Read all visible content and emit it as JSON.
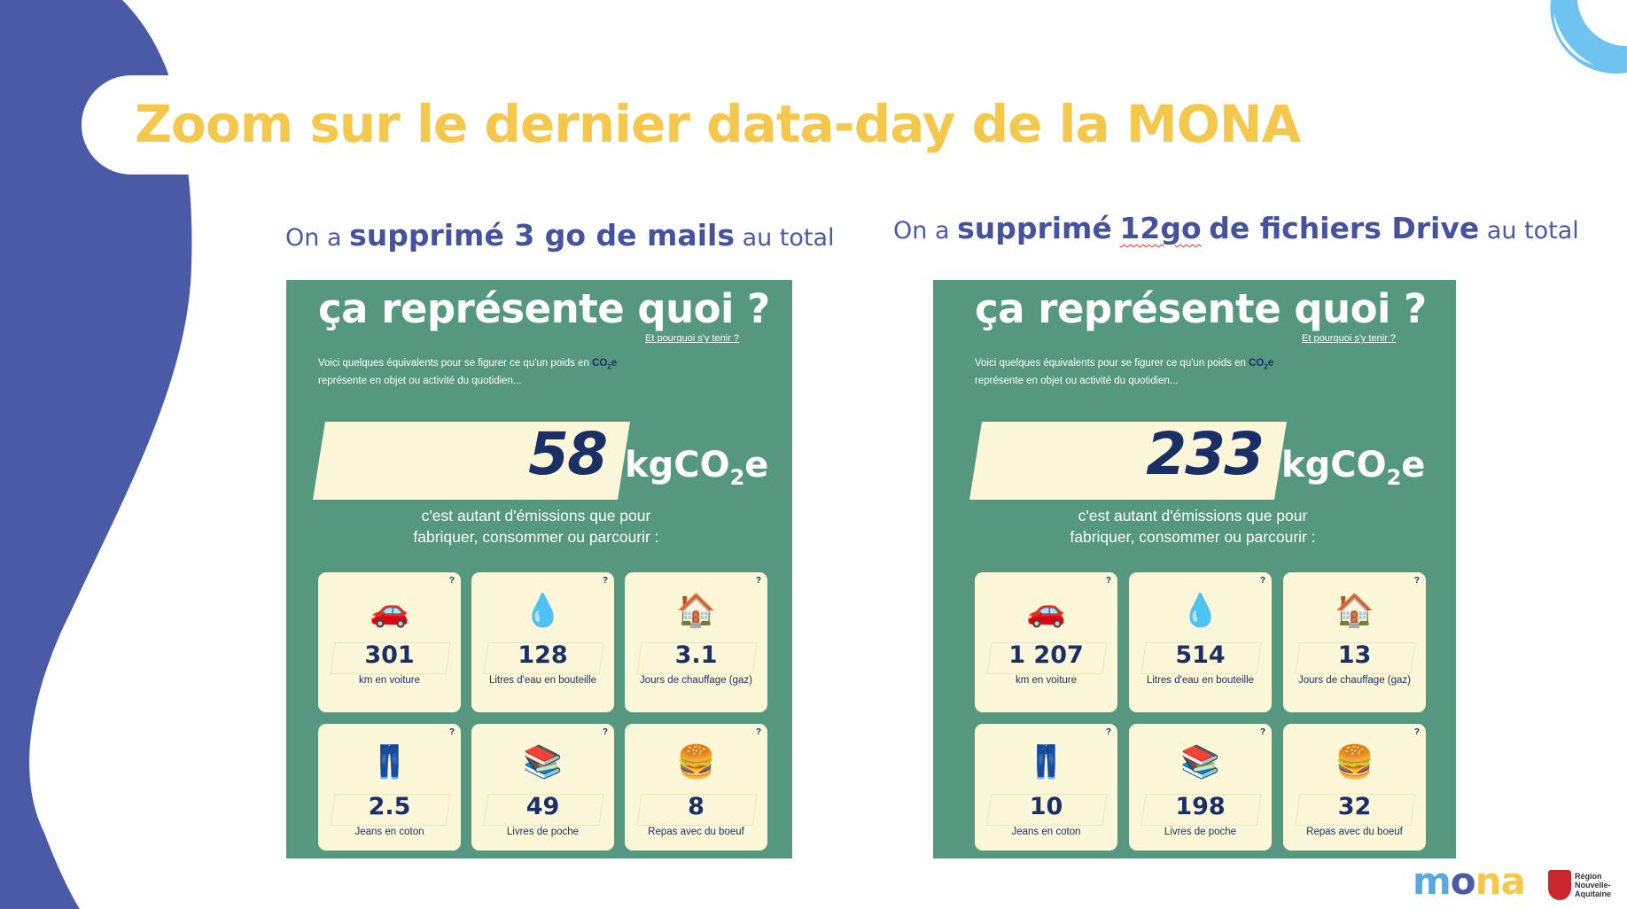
{
  "title": "Zoom sur le dernier data-day de la MONA",
  "colors": {
    "blue_shape": "#4b5aa6",
    "title_yellow": "#f4c84c",
    "card_green": "#56977f",
    "tile_cream": "#fbf7d8",
    "navy": "#1a2f66",
    "light_blue": "#6fc3f0"
  },
  "subtitles": [
    {
      "pre": "On a",
      "bold": "supprimé 3 go de mails",
      "post": "au total"
    },
    {
      "pre": "On a",
      "bold_1": "supprimé",
      "bold_underlined": "12go",
      "bold_2": "de fichiers Drive",
      "post": "au total"
    }
  ],
  "cards": [
    {
      "heading": "ça représente quoi ?",
      "link": "Et pourquoi s'y tenir ?",
      "intro_1": "Voici quelques équivalents pour se figurer ce qu'un poids en",
      "intro_co2": "CO",
      "intro_co2_sub": "2",
      "intro_co2_e": "e",
      "intro_2": "représente en objet ou activité du quotidien...",
      "amount": "58",
      "unit": "kgCO",
      "unit_sub": "2",
      "unit_e": "e",
      "explain_1": "c'est autant d'émissions que pour",
      "explain_2": "fabriquer, consommer ou parcourir :",
      "tiles": [
        {
          "icon": "car-icon",
          "glyph": "🚗",
          "q": "?",
          "value": "301",
          "label": "km en voiture"
        },
        {
          "icon": "water-drop-icon",
          "glyph": "💧",
          "q": "?",
          "value": "128",
          "label": "Litres d'eau en bouteille"
        },
        {
          "icon": "house-icon",
          "glyph": "🏠",
          "q": "?",
          "value": "3.1",
          "label": "Jours de chauffage (gaz)"
        },
        {
          "icon": "jeans-icon",
          "glyph": "👖",
          "q": "?",
          "value": "2.5",
          "label": "Jeans en coton"
        },
        {
          "icon": "books-icon",
          "glyph": "📚",
          "q": "?",
          "value": "49",
          "label": "Livres de poche"
        },
        {
          "icon": "burger-icon",
          "glyph": "🍔",
          "q": "?",
          "value": "8",
          "label": "Repas avec du boeuf"
        }
      ]
    },
    {
      "heading": "ça représente quoi ?",
      "link": "Et pourquoi s'y tenir ?",
      "intro_1": "Voici quelques équivalents pour se figurer ce qu'un poids en",
      "intro_co2": "CO",
      "intro_co2_sub": "2",
      "intro_co2_e": "e",
      "intro_2": "représente en objet ou activité du quotidien...",
      "amount": "233",
      "unit": "kgCO",
      "unit_sub": "2",
      "unit_e": "e",
      "explain_1": "c'est autant d'émissions que pour",
      "explain_2": "fabriquer, consommer ou parcourir :",
      "tiles": [
        {
          "icon": "car-icon",
          "glyph": "🚗",
          "q": "?",
          "value": "1 207",
          "label": "km en voiture"
        },
        {
          "icon": "water-drop-icon",
          "glyph": "💧",
          "q": "?",
          "value": "514",
          "label": "Litres d'eau en bouteille"
        },
        {
          "icon": "house-icon",
          "glyph": "🏠",
          "q": "?",
          "value": "13",
          "label": "Jours de chauffage (gaz)"
        },
        {
          "icon": "jeans-icon",
          "glyph": "👖",
          "q": "?",
          "value": "10",
          "label": "Jeans en coton"
        },
        {
          "icon": "books-icon",
          "glyph": "📚",
          "q": "?",
          "value": "198",
          "label": "Livres de poche"
        },
        {
          "icon": "burger-icon",
          "glyph": "🍔",
          "q": "?",
          "value": "32",
          "label": "Repas avec du boeuf"
        }
      ]
    }
  ],
  "logo": {
    "part1": "m",
    "part2": "o",
    "part3": "na",
    "region": "Région Nouvelle-Aquitaine"
  }
}
